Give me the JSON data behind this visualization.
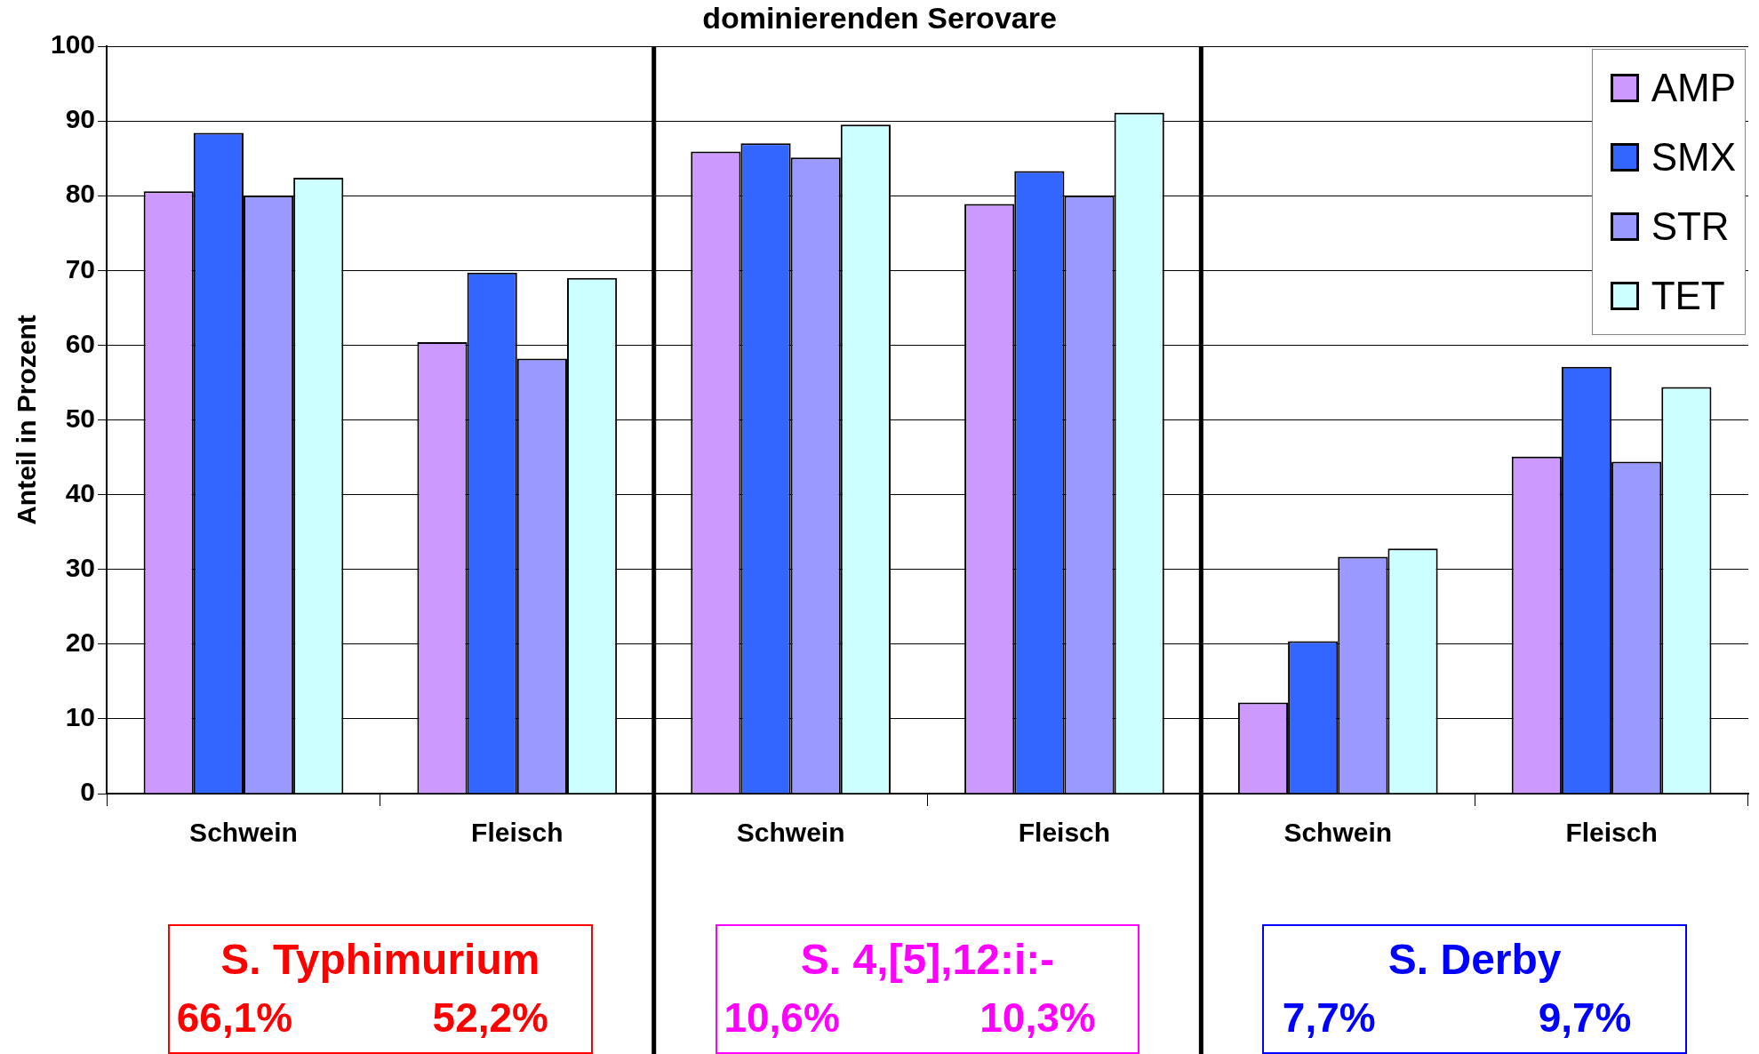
{
  "chart_data": {
    "type": "bar",
    "title": "dominierenden Serovare",
    "ylabel": "Anteil in Prozent",
    "categories": [
      "Schwein",
      "Fleisch",
      "Schwein",
      "Fleisch",
      "Schwein",
      "Fleisch"
    ],
    "series": [
      {
        "name": "AMP",
        "color": "#cc99ff",
        "values": [
          80.6,
          60.4,
          85.9,
          78.9,
          12.2,
          45.1
        ]
      },
      {
        "name": "SMX",
        "color": "#3366ff",
        "values": [
          88.4,
          69.7,
          87.0,
          83.3,
          20.4,
          57.1
        ]
      },
      {
        "name": "STR",
        "color": "#9999ff",
        "values": [
          80.0,
          58.2,
          85.1,
          80.0,
          31.7,
          44.4
        ]
      },
      {
        "name": "TET",
        "color": "#ccffff",
        "values": [
          82.4,
          69.0,
          89.5,
          91.1,
          32.8,
          54.4
        ]
      }
    ],
    "ylim": [
      0,
      100
    ],
    "yticks": [
      0,
      10,
      20,
      30,
      40,
      50,
      60,
      70,
      80,
      90,
      100
    ],
    "grid": "y",
    "legend": "top right",
    "annotations": [
      "S. Typhimurium",
      "66,1%",
      "52,2%",
      "S. 4,[5],12:i:-",
      "10,6%",
      "10,3%",
      "S. Derby",
      "7,7%",
      "9,7%"
    ]
  }
}
